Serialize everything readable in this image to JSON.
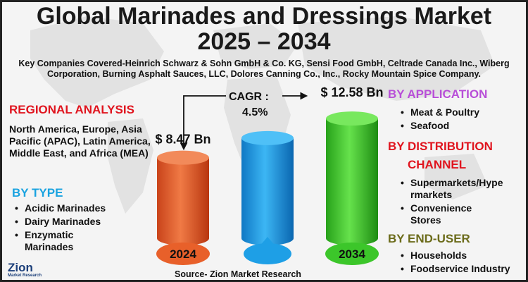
{
  "title_line1": "Global Marinades and Dressings Market",
  "title_line2": "2025 – 2034",
  "companies": "Key Companies Covered-Heinrich Schwarz & Sohn GmbH & Co. KG, Sensi Food GmbH, Celtrade Canada Inc., Wiberg Corporation, Burning Asphalt Sauces, LLC, Dolores Canning Co., Inc., Rocky Mountain Spice Company.",
  "regional": {
    "heading": "REGIONAL ANALYSIS",
    "text": "North America, Europe, Asia Pacific (APAC), Latin America, Middle East, and Africa (MEA)"
  },
  "by_type": {
    "heading": "BY TYPE",
    "items": [
      "Acidic Marinades",
      "Dairy Marinades",
      "Enzymatic Marinades"
    ]
  },
  "by_application": {
    "heading": "BY APPLICATION",
    "items": [
      "Meat & Poultry",
      "Seafood"
    ]
  },
  "by_distribution": {
    "heading_line1": "BY DISTRIBUTION",
    "heading_line2": "CHANNEL",
    "items": [
      "Supermarkets/Hypermarkets",
      "Convenience Stores"
    ]
  },
  "by_end_user": {
    "heading": "BY END-USER",
    "items": [
      "Households",
      "Foodservice Industry"
    ]
  },
  "source": "Source- Zion Market Research",
  "logo": {
    "name": "Zion",
    "sub": "Market Research"
  },
  "colors": {
    "red_heading": "#e0141e",
    "blue_heading": "#1aa3e0",
    "purple_heading": "#b84fd8",
    "olive_heading": "#6b6b1a",
    "bar_2024": "#e8602a",
    "bar_mid": "#1e9fe6",
    "bar_2034": "#3cc62a"
  },
  "chart_data": {
    "type": "bar",
    "categories": [
      "2024",
      "",
      "2034"
    ],
    "values": [
      8.47,
      10.53,
      12.58
    ],
    "value_labels": [
      "$ 8.47 Bn",
      "",
      "$ 12.58 Bn"
    ],
    "cagr_label": "CAGR :",
    "cagr_value": "4.5%",
    "ylim": [
      0,
      13
    ]
  }
}
